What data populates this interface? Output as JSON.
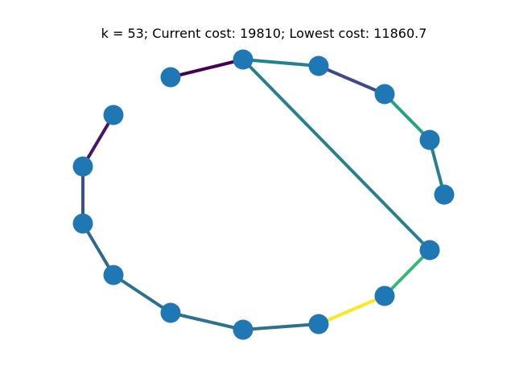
{
  "figure": {
    "title": "k = 53; Current cost: 19810; Lowest cost: 11860.7"
  },
  "graph": {
    "node_color": "#1f77b4",
    "edges": [
      {
        "from": 0,
        "to": 1,
        "color": "#440154"
      },
      {
        "from": 1,
        "to": 2,
        "color": "#26818e"
      },
      {
        "from": 1,
        "to": 13,
        "color": "#26818e"
      },
      {
        "from": 2,
        "to": 3,
        "color": "#3e4a89"
      },
      {
        "from": 3,
        "to": 4,
        "color": "#22a184"
      },
      {
        "from": 4,
        "to": 5,
        "color": "#277f8e"
      },
      {
        "from": 13,
        "to": 12,
        "color": "#35b779"
      },
      {
        "from": 12,
        "to": 11,
        "color": "#fde725"
      },
      {
        "from": 11,
        "to": 10,
        "color": "#2c728e"
      },
      {
        "from": 10,
        "to": 9,
        "color": "#2c718e"
      },
      {
        "from": 9,
        "to": 8,
        "color": "#2d708e"
      },
      {
        "from": 8,
        "to": 7,
        "color": "#31668e"
      },
      {
        "from": 7,
        "to": 6,
        "color": "#3b518b"
      },
      {
        "from": 6,
        "to": 14,
        "color": "#471365"
      }
    ]
  }
}
